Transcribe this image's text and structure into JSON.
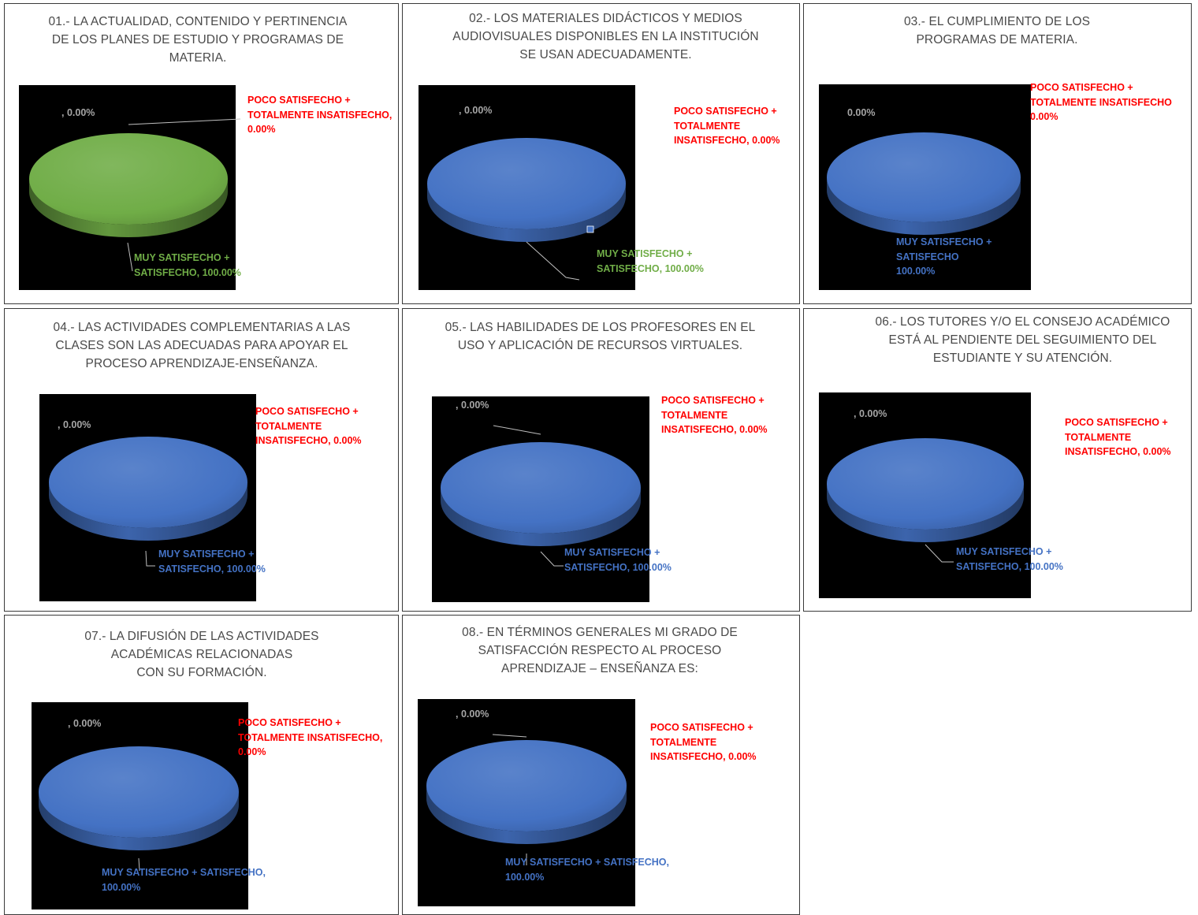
{
  "colors": {
    "blue": "#4472c4",
    "green": "#70ad47",
    "red": "#ff0000",
    "gray_label": "#a6a6a6",
    "title_text": "#4a4a4a",
    "plot_bg": "#000000"
  },
  "charts": [
    {
      "title": "01.- LA ACTUALIDAD, CONTENIDO Y PERTINENCIA\nDE LOS PLANES DE ESTUDIO Y PROGRAMAS DE\nMATERIA.",
      "pie_color_name": "green",
      "zero_label": ", 0.00%",
      "poco_label": "POCO SATISFECHO +\nTOTALMENTE INSATISFECHO,\n0.00%",
      "muy_label": "MUY SATISFECHO +\nSATISFECHO, 100.00%",
      "muy_color_name": "green"
    },
    {
      "title": "02.- LOS MATERIALES DIDÁCTICOS Y MEDIOS\nAUDIOVISUALES DISPONIBLES EN LA INSTITUCIÓN\nSE USAN ADECUADAMENTE.",
      "pie_color_name": "blue",
      "zero_label": ", 0.00%",
      "poco_label": "POCO SATISFECHO +\nTOTALMENTE\nINSATISFECHO, 0.00%",
      "muy_label": "MUY SATISFECHO +\nSATISFECHO, 100.00%",
      "muy_color_name": "green"
    },
    {
      "title": "03.- EL CUMPLIMIENTO DE LOS\nPROGRAMAS DE MATERIA.",
      "pie_color_name": "blue",
      "zero_label": "0.00%",
      "poco_label": "POCO SATISFECHO +\nTOTALMENTE INSATISFECHO\n0.00%",
      "muy_label": "MUY SATISFECHO +\nSATISFECHO\n100.00%",
      "muy_color_name": "blue"
    },
    {
      "title": "04.- LAS ACTIVIDADES COMPLEMENTARIAS A LAS\nCLASES SON LAS ADECUADAS PARA APOYAR EL\nPROCESO APRENDIZAJE-ENSEÑANZA.",
      "pie_color_name": "blue",
      "zero_label": ", 0.00%",
      "poco_label": "POCO SATISFECHO +\nTOTALMENTE\nINSATISFECHO, 0.00%",
      "muy_label": "MUY SATISFECHO +\nSATISFECHO, 100.00%",
      "muy_color_name": "blue"
    },
    {
      "title": "05.- LAS HABILIDADES DE LOS PROFESORES EN EL\nUSO Y APLICACIÓN DE RECURSOS VIRTUALES.",
      "pie_color_name": "blue",
      "zero_label": ", 0.00%",
      "poco_label": "POCO SATISFECHO +\nTOTALMENTE\nINSATISFECHO, 0.00%",
      "muy_label": "MUY SATISFECHO +\nSATISFECHO, 100.00%",
      "muy_color_name": "blue"
    },
    {
      "title": "06.- LOS TUTORES Y/O EL CONSEJO ACADÉMICO\nESTÁ AL PENDIENTE DEL SEGUIMIENTO DEL\nESTUDIANTE Y SU ATENCIÓN.",
      "pie_color_name": "blue",
      "zero_label": ", 0.00%",
      "poco_label": "POCO SATISFECHO +\nTOTALMENTE\nINSATISFECHO, 0.00%",
      "muy_label": "MUY SATISFECHO +\nSATISFECHO, 100.00%",
      "muy_color_name": "blue"
    },
    {
      "title": "07.- LA DIFUSIÓN DE LAS ACTIVIDADES\nACADÉMICAS RELACIONADAS\nCON SU FORMACIÓN.",
      "pie_color_name": "blue",
      "zero_label": ", 0.00%",
      "poco_label": "POCO SATISFECHO +\nTOTALMENTE INSATISFECHO,\n0.00%",
      "muy_label": "MUY SATISFECHO + SATISFECHO,\n100.00%",
      "muy_color_name": "blue"
    },
    {
      "title": "08.- EN TÉRMINOS GENERALES MI GRADO DE\nSATISFACCIÓN  RESPECTO AL PROCESO\nAPRENDIZAJE – ENSEÑANZA ES:",
      "pie_color_name": "blue",
      "zero_label": ", 0.00%",
      "poco_label": "POCO SATISFECHO +\nTOTALMENTE\nINSATISFECHO, 0.00%",
      "muy_label": "MUY SATISFECHO + SATISFECHO,\n100.00%",
      "muy_color_name": "blue"
    }
  ],
  "chart_data": [
    {
      "type": "pie",
      "title": "01.- LA ACTUALIDAD, CONTENIDO Y PERTINENCIA DE LOS PLANES DE ESTUDIO Y PROGRAMAS DE MATERIA.",
      "categories": [
        "MUY SATISFECHO + SATISFECHO",
        "POCO SATISFECHO + TOTALMENTE INSATISFECHO",
        ""
      ],
      "values": [
        100.0,
        0.0,
        0.0
      ],
      "unit": "%"
    },
    {
      "type": "pie",
      "title": "02.- LOS MATERIALES DIDÁCTICOS Y MEDIOS AUDIOVISUALES DISPONIBLES EN LA INSTITUCIÓN SE USAN ADECUADAMENTE.",
      "categories": [
        "MUY SATISFECHO + SATISFECHO",
        "POCO SATISFECHO + TOTALMENTE INSATISFECHO",
        ""
      ],
      "values": [
        100.0,
        0.0,
        0.0
      ],
      "unit": "%"
    },
    {
      "type": "pie",
      "title": "03.- EL CUMPLIMIENTO DE LOS PROGRAMAS DE MATERIA.",
      "categories": [
        "MUY SATISFECHO + SATISFECHO",
        "POCO SATISFECHO + TOTALMENTE INSATISFECHO",
        ""
      ],
      "values": [
        100.0,
        0.0,
        0.0
      ],
      "unit": "%"
    },
    {
      "type": "pie",
      "title": "04.- LAS ACTIVIDADES COMPLEMENTARIAS A LAS CLASES SON LAS ADECUADAS PARA APOYAR EL PROCESO APRENDIZAJE-ENSEÑANZA.",
      "categories": [
        "MUY SATISFECHO + SATISFECHO",
        "POCO SATISFECHO + TOTALMENTE INSATISFECHO",
        ""
      ],
      "values": [
        100.0,
        0.0,
        0.0
      ],
      "unit": "%"
    },
    {
      "type": "pie",
      "title": "05.- LAS HABILIDADES DE LOS PROFESORES EN EL USO Y APLICACIÓN DE RECURSOS VIRTUALES.",
      "categories": [
        "MUY SATISFECHO + SATISFECHO",
        "POCO SATISFECHO + TOTALMENTE INSATISFECHO",
        ""
      ],
      "values": [
        100.0,
        0.0,
        0.0
      ],
      "unit": "%"
    },
    {
      "type": "pie",
      "title": "06.- LOS TUTORES Y/O EL CONSEJO ACADÉMICO ESTÁ AL PENDIENTE DEL SEGUIMIENTO DEL ESTUDIANTE Y SU ATENCIÓN.",
      "categories": [
        "MUY SATISFECHO + SATISFECHO",
        "POCO SATISFECHO + TOTALMENTE INSATISFECHO",
        ""
      ],
      "values": [
        100.0,
        0.0,
        0.0
      ],
      "unit": "%"
    },
    {
      "type": "pie",
      "title": "07.- LA DIFUSIÓN DE LAS ACTIVIDADES ACADÉMICAS RELACIONADAS CON SU FORMACIÓN.",
      "categories": [
        "MUY SATISFECHO + SATISFECHO",
        "POCO SATISFECHO + TOTALMENTE INSATISFECHO",
        ""
      ],
      "values": [
        100.0,
        0.0,
        0.0
      ],
      "unit": "%"
    },
    {
      "type": "pie",
      "title": "08.- EN TÉRMINOS GENERALES MI GRADO DE SATISFACCIÓN  RESPECTO AL PROCESO APRENDIZAJE – ENSEÑANZA ES:",
      "categories": [
        "MUY SATISFECHO + SATISFECHO",
        "POCO SATISFECHO + TOTALMENTE INSATISFECHO",
        ""
      ],
      "values": [
        100.0,
        0.0,
        0.0
      ],
      "unit": "%"
    }
  ]
}
